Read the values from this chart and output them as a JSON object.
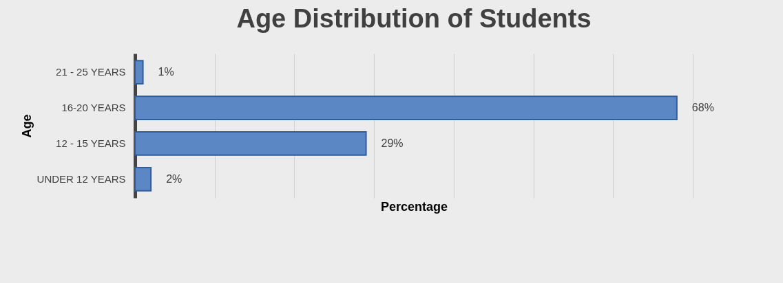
{
  "chart_data": {
    "type": "bar",
    "orientation": "horizontal",
    "title": "Age Distribution of Students",
    "xlabel": "Percentage",
    "ylabel": "Age",
    "categories": [
      "21 - 25 YEARS",
      "16-20 YEARS",
      "12 - 15 YEARS",
      "UNDER 12 YEARS"
    ],
    "values": [
      1,
      68,
      29,
      2
    ],
    "value_labels": [
      "1%",
      "68%",
      "29%",
      "2%"
    ],
    "color": "#5b87c5",
    "grid": "x",
    "tick_labels": "y"
  }
}
